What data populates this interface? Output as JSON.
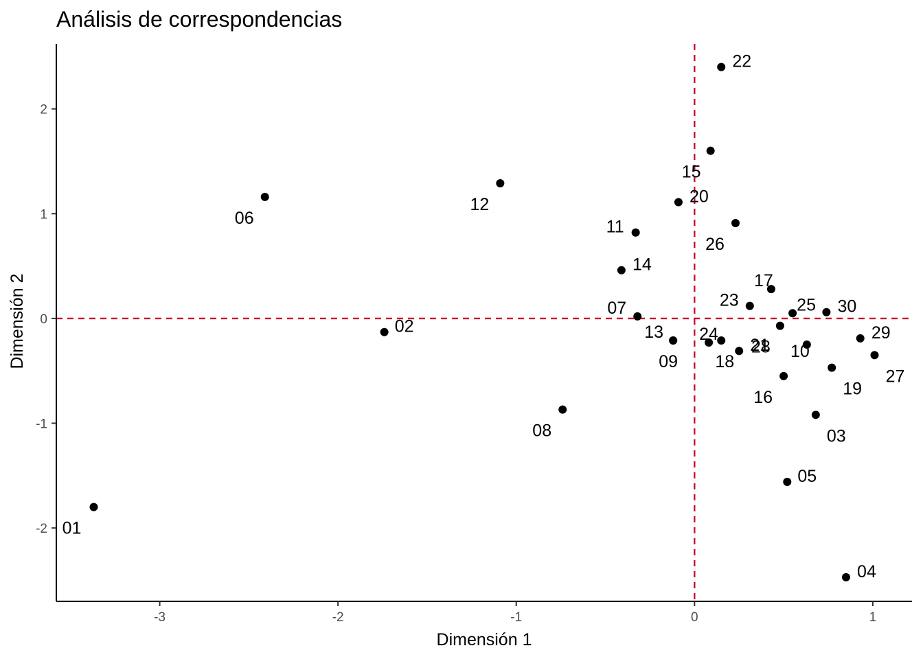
{
  "chart_data": {
    "type": "scatter",
    "title": "Análisis de correspondencias",
    "xlabel": "Dimensión 1",
    "ylabel": "Dimensión 2",
    "xlim": [
      -3.58,
      1.22
    ],
    "ylim": [
      -2.7,
      2.62
    ],
    "x_ticks": [
      -3,
      -2,
      -1,
      0,
      1
    ],
    "y_ticks": [
      -2,
      -1,
      0,
      1,
      2
    ],
    "grid": false,
    "reference_lines": {
      "x": 0,
      "y": 0,
      "style": "dashed",
      "color": "#c8102e"
    },
    "point_color": "#000000",
    "points": [
      {
        "label": "01",
        "x": -3.37,
        "y": -1.8
      },
      {
        "label": "02",
        "x": -1.74,
        "y": -0.13
      },
      {
        "label": "03",
        "x": 0.68,
        "y": -0.92
      },
      {
        "label": "04",
        "x": 0.85,
        "y": -2.47
      },
      {
        "label": "05",
        "x": 0.52,
        "y": -1.56
      },
      {
        "label": "06",
        "x": -2.41,
        "y": 1.16
      },
      {
        "label": "07",
        "x": -0.32,
        "y": 0.02
      },
      {
        "label": "08",
        "x": -0.74,
        "y": -0.87
      },
      {
        "label": "09",
        "x": -0.12,
        "y": -0.21
      },
      {
        "label": "10",
        "x": 0.63,
        "y": -0.25
      },
      {
        "label": "11",
        "x": -0.33,
        "y": 0.82
      },
      {
        "label": "12",
        "x": -1.09,
        "y": 1.29
      },
      {
        "label": "13",
        "x": -0.12,
        "y": -0.21
      },
      {
        "label": "14",
        "x": -0.41,
        "y": 0.46
      },
      {
        "label": "15",
        "x": 0.09,
        "y": 1.6
      },
      {
        "label": "16",
        "x": 0.5,
        "y": -0.55
      },
      {
        "label": "17",
        "x": 0.43,
        "y": 0.28
      },
      {
        "label": "18",
        "x": 0.15,
        "y": -0.21
      },
      {
        "label": "19",
        "x": 0.77,
        "y": -0.47
      },
      {
        "label": "20",
        "x": -0.09,
        "y": 1.11
      },
      {
        "label": "21",
        "x": 0.25,
        "y": -0.31
      },
      {
        "label": "22",
        "x": 0.15,
        "y": 2.4
      },
      {
        "label": "23",
        "x": 0.31,
        "y": 0.12
      },
      {
        "label": "24",
        "x": 0.08,
        "y": -0.23
      },
      {
        "label": "25",
        "x": 0.55,
        "y": 0.05
      },
      {
        "label": "26",
        "x": 0.23,
        "y": 0.91
      },
      {
        "label": "27",
        "x": 1.01,
        "y": -0.35
      },
      {
        "label": "28",
        "x": 0.48,
        "y": -0.07
      },
      {
        "label": "29",
        "x": 0.93,
        "y": -0.19
      },
      {
        "label": "30",
        "x": 0.74,
        "y": 0.06
      }
    ]
  }
}
